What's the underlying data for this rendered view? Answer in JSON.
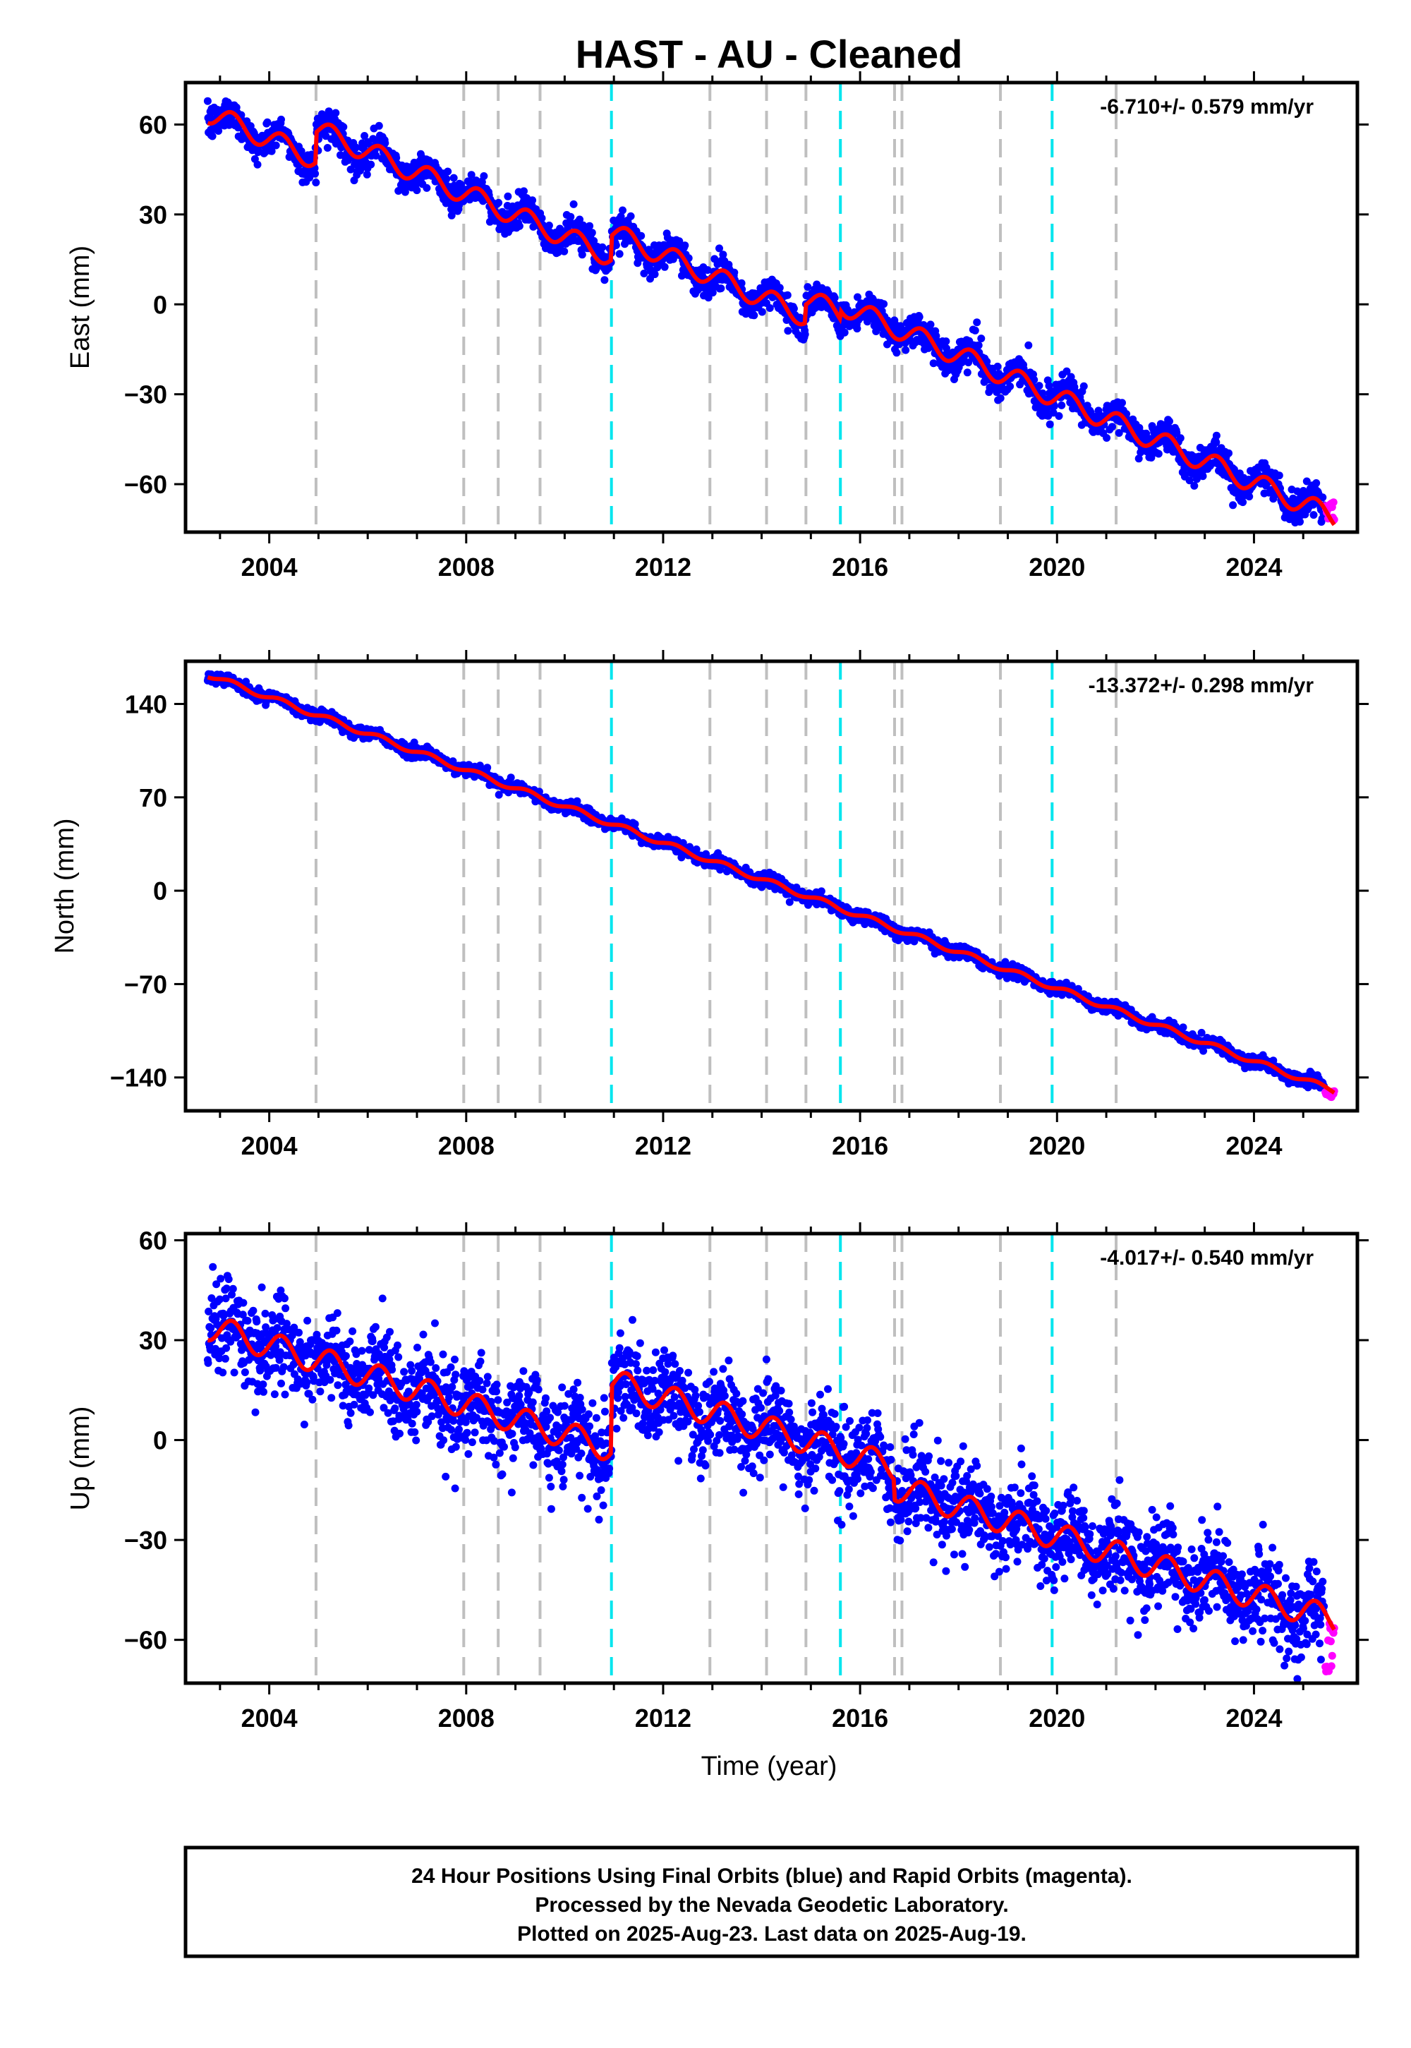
{
  "title": "HAST  - AU - Cleaned",
  "xlabel": "Time (year)",
  "footer": {
    "line1": "24 Hour Positions Using Final Orbits (blue) and Rapid Orbits (magenta).",
    "line2": "Processed by the Nevada Geodetic Laboratory.",
    "line3": "Plotted on 2025-Aug-23. Last data on 2025-Aug-19."
  },
  "colors": {
    "final_orbits": "#0000ff",
    "rapid_orbits": "#ff00ff",
    "model_fit": "#ff0000",
    "antenna_change_lines": "#00e5ee",
    "event_lines": "#bfbfbf"
  },
  "chart_data": [
    {
      "type": "scatter",
      "ylabel": "East (mm)",
      "rate_label": "-6.710+/- 0.579 mm/yr",
      "xlim": [
        2002.3,
        2026.1
      ],
      "ylim": [
        -76,
        74
      ],
      "x_ticks": [
        2004,
        2008,
        2012,
        2016,
        2020,
        2024
      ],
      "y_ticks": [
        60,
        30,
        0,
        -30,
        -60
      ],
      "grid": false,
      "start_year": 2002.75,
      "end_year": 2025.63,
      "series": [
        {
          "name": "Final Orbits",
          "color": "#0000ff",
          "trend_start": 64,
          "trend_end": -71,
          "annual_amplitude": 3.5,
          "noise": 2.6
        },
        {
          "name": "Rapid Orbits",
          "color": "#ff00ff",
          "x_range": [
            2025.45,
            2025.63
          ],
          "approx_values": [
            -64,
            -72
          ]
        }
      ],
      "offsets": [
        {
          "year": 2004.95,
          "jump": 10
        },
        {
          "year": 2010.95,
          "jump": 8
        },
        {
          "year": 2014.9,
          "jump": 6
        },
        {
          "year": 2015.6,
          "jump": 3
        }
      ],
      "model_fit": {
        "color": "#ff0000",
        "start": 64,
        "end": -71
      },
      "vlines_gray": [
        2004.95,
        2007.95,
        2008.65,
        2009.5,
        2012.95,
        2014.1,
        2014.9,
        2016.7,
        2016.85,
        2018.85,
        2021.2
      ],
      "vlines_cyan": [
        2010.95,
        2015.6,
        2019.9
      ]
    },
    {
      "type": "scatter",
      "ylabel": "North (mm)",
      "rate_label": "-13.372+/- 0.298 mm/yr",
      "xlim": [
        2002.3,
        2026.1
      ],
      "ylim": [
        -165,
        172
      ],
      "x_ticks": [
        2004,
        2008,
        2012,
        2016,
        2020,
        2024
      ],
      "y_ticks": [
        140,
        70,
        0,
        -70,
        -140
      ],
      "grid": false,
      "start_year": 2002.75,
      "end_year": 2025.63,
      "series": [
        {
          "name": "Final Orbits",
          "color": "#0000ff",
          "trend_start": 162,
          "trend_end": -150,
          "annual_amplitude": 2.0,
          "noise": 2.2
        },
        {
          "name": "Rapid Orbits",
          "color": "#ff00ff",
          "x_range": [
            2025.45,
            2025.63
          ],
          "approx_values": [
            -150,
            -155
          ]
        }
      ],
      "offsets": [],
      "model_fit": {
        "color": "#ff0000",
        "start": 162,
        "end": -150
      },
      "vlines_gray": [
        2004.95,
        2007.95,
        2008.65,
        2009.5,
        2012.95,
        2014.1,
        2014.9,
        2016.7,
        2016.85,
        2018.85,
        2021.2
      ],
      "vlines_cyan": [
        2010.95,
        2015.6,
        2019.9
      ]
    },
    {
      "type": "scatter",
      "ylabel": "Up (mm)",
      "rate_label": "-4.017+/- 0.540 mm/yr",
      "xlim": [
        2002.3,
        2026.1
      ],
      "ylim": [
        -73,
        62
      ],
      "x_ticks": [
        2004,
        2008,
        2012,
        2016,
        2020,
        2024
      ],
      "y_ticks": [
        60,
        30,
        0,
        -30,
        -60
      ],
      "grid": false,
      "start_year": 2002.75,
      "end_year": 2025.63,
      "series": [
        {
          "name": "Final Orbits",
          "color": "#0000ff",
          "trend_start": 34,
          "trend_end": -54,
          "annual_amplitude": 4.0,
          "noise": 6.5
        },
        {
          "name": "Rapid Orbits",
          "color": "#ff00ff",
          "x_range": [
            2025.45,
            2025.63
          ],
          "approx_values": [
            -55,
            -70
          ]
        }
      ],
      "offsets": [
        {
          "year": 2010.95,
          "jump": 20
        },
        {
          "year": 2016.7,
          "jump": -6
        }
      ],
      "model_fit": {
        "color": "#ff0000",
        "start": 34,
        "end": -54
      },
      "vlines_gray": [
        2004.95,
        2007.95,
        2008.65,
        2009.5,
        2012.95,
        2014.1,
        2014.9,
        2016.7,
        2016.85,
        2018.85,
        2021.2
      ],
      "vlines_cyan": [
        2010.95,
        2015.6,
        2019.9
      ]
    }
  ]
}
